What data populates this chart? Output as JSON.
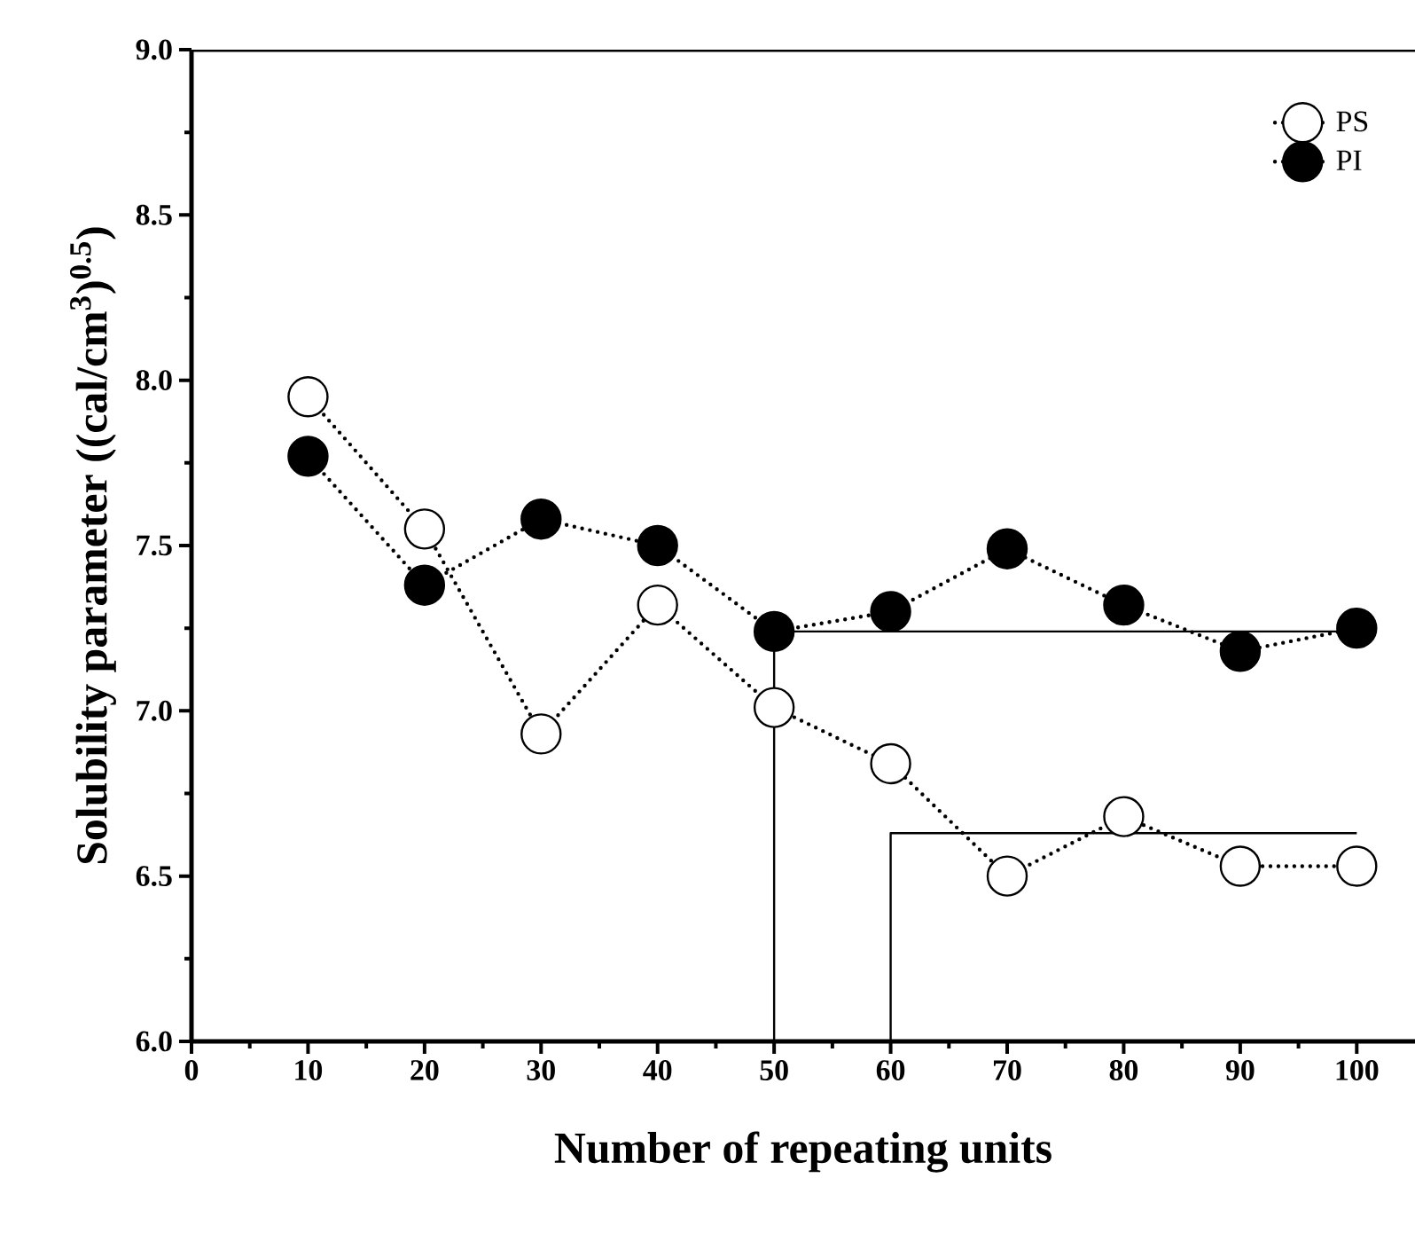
{
  "chart_data": {
    "type": "line",
    "xlabel": "Number of repeating units",
    "ylabel": "Solubility parameter ((cal/cm$^{3}$)$^{0.5}$)",
    "x": [
      10,
      20,
      30,
      40,
      50,
      60,
      70,
      80,
      90,
      100
    ],
    "series": [
      {
        "name": "PS",
        "color": "#ffffff",
        "values": [
          7.95,
          7.55,
          6.93,
          7.32,
          7.01,
          6.84,
          6.5,
          6.68,
          6.53,
          6.53
        ]
      },
      {
        "name": "PI",
        "color": "#000000",
        "values": [
          7.77,
          7.38,
          7.58,
          7.5,
          7.24,
          7.3,
          7.49,
          7.32,
          7.18,
          7.25
        ]
      },
      {
        "type": "line",
        "color": "#000000",
        "x": [
          50,
          50,
          100
        ],
        "values": [
          6.0,
          7.24,
          7.24
        ],
        "line_style": "solid",
        "marker": "none"
      },
      {
        "type": "line",
        "color": "#000000",
        "x": [
          60,
          60,
          100
        ],
        "values": [
          6.0,
          6.63,
          6.63
        ],
        "line_style": "solid",
        "marker": "none"
      }
    ],
    "xlim": [
      0,
      105
    ],
    "ylim": [
      6.0,
      9.0
    ],
    "xticks": [
      0,
      10,
      20,
      30,
      40,
      50,
      60,
      70,
      80,
      90,
      100
    ],
    "yticks": [
      {
        "value": 6.0,
        "label": "6.0"
      },
      6.5,
      {
        "value": 7.0,
        "label": "7.0"
      },
      7.5,
      {
        "value": 8.0,
        "label": "8.0"
      },
      8.5,
      {
        "value": 9.0,
        "label": "9.0"
      }
    ],
    "legend": "top right",
    "marker": "circle",
    "line_style": "dotted",
    "grid": false
  }
}
